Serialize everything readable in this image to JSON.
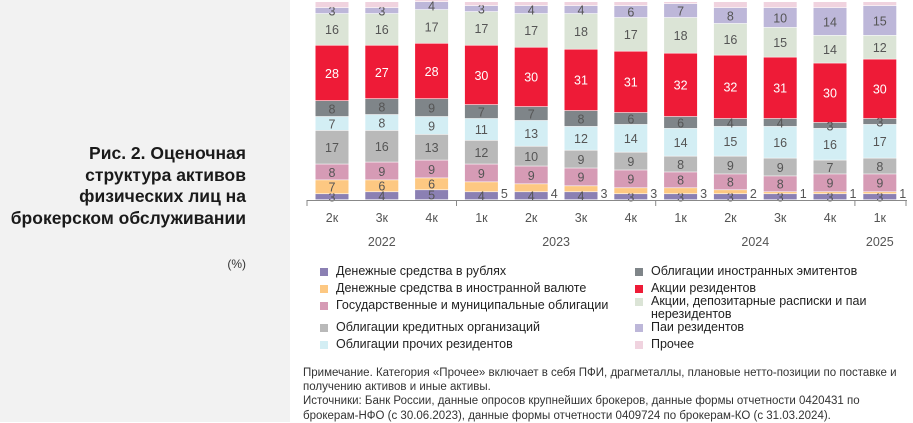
{
  "title": "Рис. 2. Оценочная структура активов физических лиц на брокерском обслуживании",
  "unit": "(%)",
  "chart_data": {
    "type": "bar",
    "stacked": true,
    "categories": [
      "2к",
      "3к",
      "4к",
      "1к",
      "2к",
      "3к",
      "4к",
      "1к",
      "2к",
      "3к",
      "4к",
      "1к"
    ],
    "years": [
      {
        "label": "2022",
        "span": 3
      },
      {
        "label": "2023",
        "span": 4
      },
      {
        "label": "2024",
        "span": 4
      },
      {
        "label": "2025",
        "span": 1
      }
    ],
    "ylim": [
      0,
      100
    ],
    "series": [
      {
        "name": "Денежные средства в рублях",
        "color": "#8b80b3",
        "values": [
          3,
          4,
          5,
          4,
          4,
          4,
          3,
          3,
          3,
          3,
          3,
          3
        ]
      },
      {
        "name": "Денежные средства в иностранной валюте",
        "color": "#fdc882",
        "values": [
          7,
          6,
          6,
          5,
          4,
          3,
          3,
          3,
          2,
          1,
          1,
          1
        ]
      },
      {
        "name": "Государственные и муниципальные облигации",
        "color": "#d69bb5",
        "values": [
          8,
          9,
          9,
          9,
          9,
          9,
          9,
          8,
          8,
          8,
          9,
          9
        ]
      },
      {
        "name": "Облигации кредитных организаций",
        "color": "#b9b9b9",
        "values": [
          17,
          16,
          13,
          12,
          10,
          9,
          9,
          8,
          9,
          9,
          7,
          8
        ]
      },
      {
        "name": "Облигации прочих резидентов",
        "color": "#d3eef4",
        "values": [
          7,
          8,
          9,
          11,
          13,
          12,
          14,
          14,
          15,
          16,
          16,
          17
        ]
      },
      {
        "name": "Облигации иностранных эмитентов",
        "color": "#7f8589",
        "values": [
          8,
          8,
          9,
          7,
          7,
          8,
          6,
          6,
          4,
          4,
          3,
          3
        ]
      },
      {
        "name": "Акции резидентов",
        "color": "#ee1b37",
        "values": [
          28,
          27,
          28,
          30,
          30,
          31,
          31,
          32,
          32,
          31,
          30,
          30
        ]
      },
      {
        "name": "Акции, депозитарные расписки и паи нерезидентов",
        "color": "#dbe4d6",
        "values": [
          16,
          16,
          17,
          17,
          17,
          18,
          17,
          18,
          16,
          15,
          14,
          12
        ]
      },
      {
        "name": "Паи резидентов",
        "color": "#bdb7d9",
        "values": [
          3,
          3,
          4,
          3,
          4,
          4,
          6,
          7,
          8,
          10,
          14,
          15
        ]
      },
      {
        "name": "Прочее",
        "color": "#f0d3df",
        "values": [
          3,
          3,
          1,
          2,
          2,
          2,
          2,
          1,
          3,
          3,
          3,
          2
        ]
      }
    ],
    "legend_position": "bottom"
  },
  "note": "Примечание. Категория «Прочее» включает в себя ПФИ, драгметаллы, плановые нетто-позиции по поставке и получению активов и иные активы.",
  "sources": "Источники: Банк России, данные опросов крупнейших брокеров, данные формы отчетности 0420431 по брокерам-НФО (с 30.06.2023), данные формы отчетности 0409724 по брокерам-КО (с 31.03.2024)."
}
